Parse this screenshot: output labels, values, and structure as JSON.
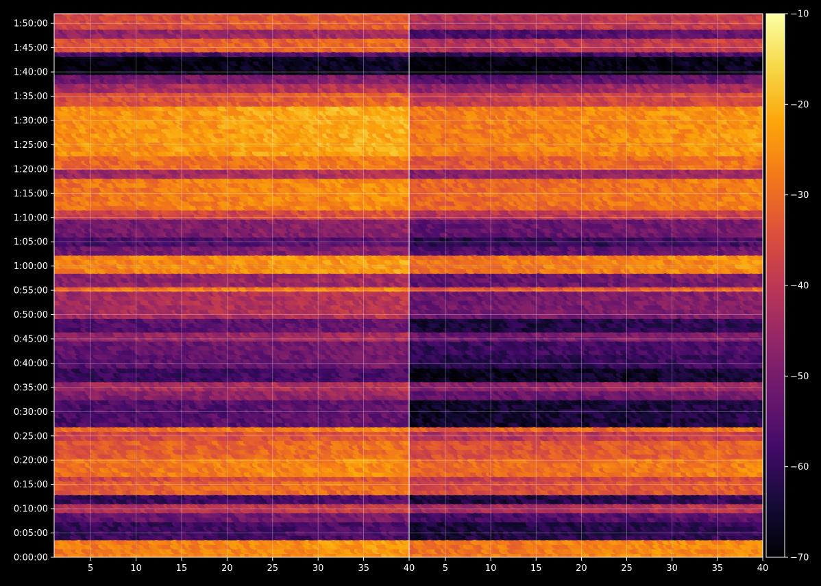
{
  "chart_data": {
    "type": "heatmap",
    "title": "",
    "xlabel": "",
    "ylabel": "",
    "panels": [
      {
        "name": "",
        "xlim": [
          1,
          40
        ],
        "xticks": [
          5,
          10,
          15,
          20,
          25,
          30,
          35,
          40
        ]
      },
      {
        "name": "",
        "xlim": [
          1,
          40
        ],
        "xticks": [
          5,
          10,
          15,
          20,
          25,
          30,
          35,
          40
        ]
      }
    ],
    "ylim_seconds": [
      0,
      6720
    ],
    "yticks": [
      {
        "label": "0:00:00",
        "sec": 0
      },
      {
        "label": "0:05:00",
        "sec": 300
      },
      {
        "label": "0:10:00",
        "sec": 600
      },
      {
        "label": "0:15:00",
        "sec": 900
      },
      {
        "label": "0:20:00",
        "sec": 1200
      },
      {
        "label": "0:25:00",
        "sec": 1500
      },
      {
        "label": "0:30:00",
        "sec": 1800
      },
      {
        "label": "0:35:00",
        "sec": 2100
      },
      {
        "label": "0:40:00",
        "sec": 2400
      },
      {
        "label": "0:45:00",
        "sec": 2700
      },
      {
        "label": "0:50:00",
        "sec": 3000
      },
      {
        "label": "0:55:00",
        "sec": 3300
      },
      {
        "label": "1:00:00",
        "sec": 3600
      },
      {
        "label": "1:05:00",
        "sec": 3900
      },
      {
        "label": "1:10:00",
        "sec": 4200
      },
      {
        "label": "1:15:00",
        "sec": 4500
      },
      {
        "label": "1:20:00",
        "sec": 4800
      },
      {
        "label": "1:25:00",
        "sec": 5100
      },
      {
        "label": "1:30:00",
        "sec": 5400
      },
      {
        "label": "1:35:00",
        "sec": 5700
      },
      {
        "label": "1:40:00",
        "sec": 6000
      },
      {
        "label": "1:45:00",
        "sec": 6300
      },
      {
        "label": "1:50:00",
        "sec": 6600
      }
    ],
    "grid": true,
    "colorbar": {
      "colormap": "inferno",
      "min": -70,
      "max": -10,
      "ticks": [
        -10,
        -20,
        -30,
        -40,
        -50,
        -60,
        -70
      ],
      "tick_labels": [
        "−10",
        "−20",
        "−30",
        "−40",
        "−50",
        "−60",
        "−70"
      ]
    },
    "bands": [
      {
        "start": 0,
        "end": 200,
        "left": -26,
        "right": -27
      },
      {
        "start": 200,
        "end": 420,
        "left": -58,
        "right": -62
      },
      {
        "start": 420,
        "end": 530,
        "left": -52,
        "right": -56
      },
      {
        "start": 530,
        "end": 620,
        "left": -40,
        "right": -42
      },
      {
        "start": 620,
        "end": 760,
        "left": -58,
        "right": -62
      },
      {
        "start": 760,
        "end": 900,
        "left": -31,
        "right": -34
      },
      {
        "start": 900,
        "end": 1000,
        "left": -36,
        "right": -38
      },
      {
        "start": 1000,
        "end": 1200,
        "left": -27,
        "right": -29
      },
      {
        "start": 1200,
        "end": 1400,
        "left": -31,
        "right": -33
      },
      {
        "start": 1400,
        "end": 1520,
        "left": -35,
        "right": -40
      },
      {
        "start": 1520,
        "end": 1600,
        "left": -28,
        "right": -30
      },
      {
        "start": 1600,
        "end": 1950,
        "left": -55,
        "right": -64
      },
      {
        "start": 1950,
        "end": 2060,
        "left": -47,
        "right": -52
      },
      {
        "start": 2060,
        "end": 2140,
        "left": -43,
        "right": -46
      },
      {
        "start": 2140,
        "end": 2300,
        "left": -58,
        "right": -66
      },
      {
        "start": 2300,
        "end": 2500,
        "left": -53,
        "right": -60
      },
      {
        "start": 2500,
        "end": 2650,
        "left": -52,
        "right": -58
      },
      {
        "start": 2650,
        "end": 2750,
        "left": -45,
        "right": -50
      },
      {
        "start": 2750,
        "end": 2950,
        "left": -54,
        "right": -62
      },
      {
        "start": 2950,
        "end": 3250,
        "left": -42,
        "right": -50
      },
      {
        "start": 3250,
        "end": 3350,
        "left": -28,
        "right": -33
      },
      {
        "start": 3350,
        "end": 3500,
        "left": -46,
        "right": -52
      },
      {
        "start": 3500,
        "end": 3720,
        "left": -25,
        "right": -27
      },
      {
        "start": 3720,
        "end": 3850,
        "left": -50,
        "right": -54
      },
      {
        "start": 3850,
        "end": 3950,
        "left": -56,
        "right": -60
      },
      {
        "start": 3950,
        "end": 4150,
        "left": -49,
        "right": -52
      },
      {
        "start": 4150,
        "end": 4300,
        "left": -36,
        "right": -39
      },
      {
        "start": 4300,
        "end": 4650,
        "left": -27,
        "right": -29
      },
      {
        "start": 4650,
        "end": 4750,
        "left": -43,
        "right": -46
      },
      {
        "start": 4750,
        "end": 4950,
        "left": -29,
        "right": -31
      },
      {
        "start": 4950,
        "end": 5550,
        "left": -23,
        "right": -26
      },
      {
        "start": 5550,
        "end": 5700,
        "left": -33,
        "right": -37
      },
      {
        "start": 5700,
        "end": 5850,
        "left": -42,
        "right": -45
      },
      {
        "start": 5850,
        "end": 5950,
        "left": -50,
        "right": -54
      },
      {
        "start": 5950,
        "end": 6150,
        "left": -68,
        "right": -69
      },
      {
        "start": 6150,
        "end": 6220,
        "left": -56,
        "right": -58
      },
      {
        "start": 6220,
        "end": 6380,
        "left": -32,
        "right": -40
      },
      {
        "start": 6380,
        "end": 6500,
        "left": -45,
        "right": -55
      },
      {
        "start": 6500,
        "end": 6720,
        "left": -34,
        "right": -40
      }
    ]
  }
}
